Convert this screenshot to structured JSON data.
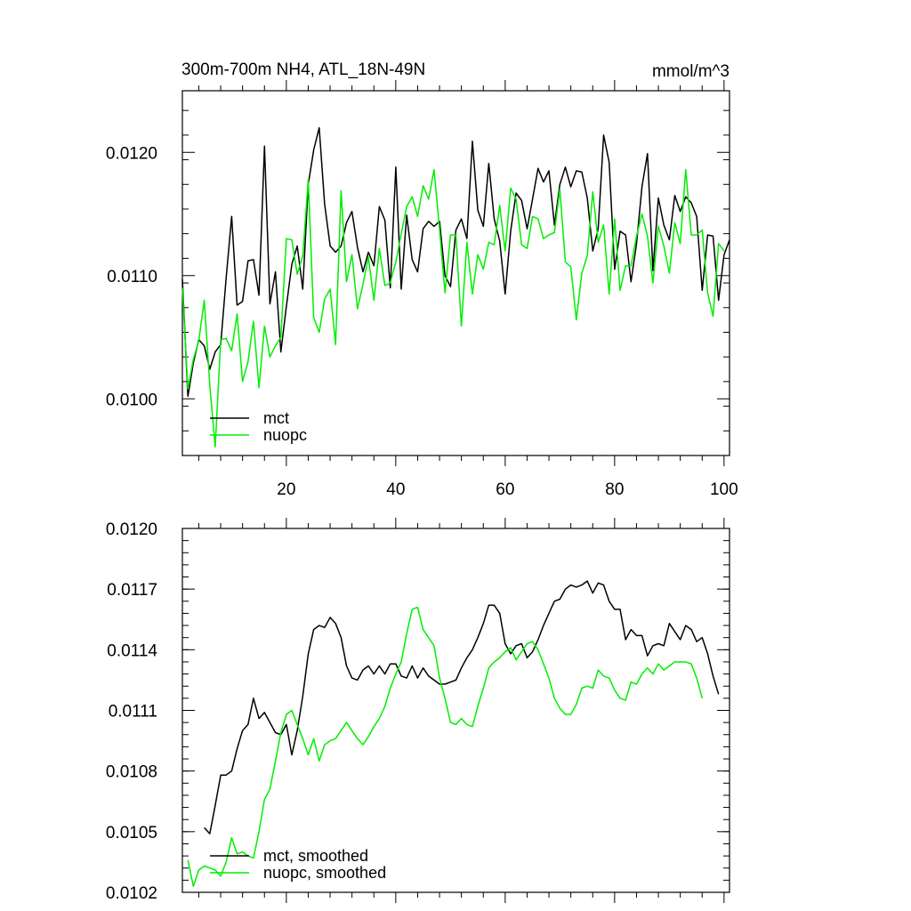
{
  "chart_data": [
    {
      "type": "line",
      "title": "300m-700m NH4, ATL_18N-49N",
      "units": "mmol/m^3",
      "xlabel": "",
      "ylabel": "",
      "xlim": [
        1,
        101
      ],
      "ylim": [
        0.00954,
        0.0125
      ],
      "x_tick_values": [
        20,
        40,
        60,
        80,
        100
      ],
      "x_tick_labels": [
        "20",
        "40",
        "60",
        "80",
        "100"
      ],
      "y_tick_values": [
        0.01,
        0.011,
        0.012
      ],
      "y_tick_labels": [
        "0.0100",
        "0.0110",
        "0.0120"
      ],
      "legend": {
        "placement": "bottom-left",
        "entries": [
          "mct",
          "nuopc"
        ]
      },
      "series": [
        {
          "name": "mct",
          "color": "#000000",
          "x_start": 1,
          "values": [
            0.01097,
            0.01002,
            0.01029,
            0.01048,
            0.01043,
            0.01024,
            0.01038,
            0.01044,
            0.01098,
            0.01148,
            0.01076,
            0.01079,
            0.01112,
            0.01113,
            0.01084,
            0.01205,
            0.01077,
            0.01103,
            0.01038,
            0.01075,
            0.01109,
            0.01124,
            0.01089,
            0.01174,
            0.01202,
            0.0122,
            0.01158,
            0.01124,
            0.01119,
            0.01124,
            0.01143,
            0.01152,
            0.01123,
            0.01103,
            0.01119,
            0.01108,
            0.01156,
            0.01145,
            0.0109,
            0.01188,
            0.01089,
            0.01149,
            0.01113,
            0.01103,
            0.01138,
            0.01144,
            0.0114,
            0.01144,
            0.011,
            0.01091,
            0.01137,
            0.01146,
            0.0113,
            0.01209,
            0.01153,
            0.0114,
            0.01191,
            0.01146,
            0.01128,
            0.01085,
            0.01136,
            0.01167,
            0.01161,
            0.01138,
            0.01162,
            0.01187,
            0.01176,
            0.01185,
            0.01141,
            0.01174,
            0.01188,
            0.01172,
            0.01185,
            0.01184,
            0.01163,
            0.0112,
            0.01138,
            0.01214,
            0.01192,
            0.01105,
            0.01136,
            0.01133,
            0.01095,
            0.01126,
            0.01172,
            0.01199,
            0.01104,
            0.01163,
            0.01141,
            0.01129,
            0.01165,
            0.01152,
            0.01164,
            0.01159,
            0.01148,
            0.01088,
            0.01133,
            0.01132,
            0.0108,
            0.01117,
            0.01129
          ]
        },
        {
          "name": "nuopc",
          "color": "#00ee00",
          "x_start": 1,
          "values": [
            0.0109,
            0.01008,
            0.01032,
            0.01047,
            0.0108,
            0.01011,
            0.00961,
            0.01048,
            0.01049,
            0.01039,
            0.01069,
            0.01014,
            0.0103,
            0.01063,
            0.01009,
            0.01059,
            0.01034,
            0.01043,
            0.0105,
            0.0113,
            0.01129,
            0.01101,
            0.01116,
            0.01178,
            0.01066,
            0.01054,
            0.01081,
            0.01089,
            0.01044,
            0.01169,
            0.01095,
            0.01117,
            0.01073,
            0.01093,
            0.01115,
            0.0108,
            0.01122,
            0.01092,
            0.01094,
            0.01111,
            0.01134,
            0.01156,
            0.01164,
            0.01148,
            0.01173,
            0.01162,
            0.01186,
            0.01137,
            0.01086,
            0.01133,
            0.01133,
            0.01059,
            0.01127,
            0.01085,
            0.01117,
            0.01105,
            0.01127,
            0.01125,
            0.01157,
            0.0112,
            0.01171,
            0.01162,
            0.01125,
            0.01122,
            0.01148,
            0.01146,
            0.0113,
            0.01133,
            0.01135,
            0.0117,
            0.01111,
            0.01107,
            0.01064,
            0.01102,
            0.01116,
            0.01168,
            0.01127,
            0.01141,
            0.01085,
            0.01146,
            0.01088,
            0.01108,
            0.01108,
            0.01132,
            0.0115,
            0.01132,
            0.01094,
            0.0114,
            0.01124,
            0.01102,
            0.01143,
            0.01126,
            0.01186,
            0.01133,
            0.01133,
            0.01137,
            0.01086,
            0.01067,
            0.01126,
            0.0112
          ]
        }
      ]
    },
    {
      "type": "line",
      "title": "",
      "xlabel": "",
      "ylabel": "",
      "xlim": [
        1,
        101
      ],
      "ylim": [
        0.0102,
        0.012
      ],
      "x_tick_values": [
        20,
        40,
        60,
        80,
        100
      ],
      "x_tick_labels": [],
      "y_tick_values": [
        0.0102,
        0.0105,
        0.0108,
        0.0111,
        0.0114,
        0.0117,
        0.012
      ],
      "y_tick_labels": [
        "0.0102",
        "0.0105",
        "0.0108",
        "0.0111",
        "0.0114",
        "0.0117",
        "0.0120"
      ],
      "legend": {
        "placement": "bottom-left",
        "entries": [
          "mct, smoothed",
          "nuopc, smoothed"
        ]
      },
      "series": [
        {
          "name": "mct, smoothed",
          "color": "#000000",
          "x_start": 5,
          "values": [
            0.01052,
            0.01049,
            0.01063,
            0.01078,
            0.01078,
            0.0108,
            0.01091,
            0.011,
            0.01103,
            0.01116,
            0.01106,
            0.01109,
            0.01104,
            0.01099,
            0.01098,
            0.01103,
            0.01088,
            0.011,
            0.01117,
            0.01138,
            0.0115,
            0.01152,
            0.01151,
            0.01156,
            0.01153,
            0.01146,
            0.01132,
            0.01126,
            0.01125,
            0.0113,
            0.01132,
            0.01128,
            0.01132,
            0.01128,
            0.01133,
            0.01133,
            0.01127,
            0.01126,
            0.01132,
            0.01126,
            0.01131,
            0.01127,
            0.01125,
            0.01123,
            0.01123,
            0.01124,
            0.01125,
            0.01131,
            0.01136,
            0.0114,
            0.01146,
            0.01153,
            0.01162,
            0.01162,
            0.01158,
            0.01143,
            0.01138,
            0.01142,
            0.01143,
            0.01136,
            0.01139,
            0.01145,
            0.01152,
            0.01158,
            0.01164,
            0.01165,
            0.0117,
            0.01172,
            0.01171,
            0.01172,
            0.01174,
            0.01168,
            0.01173,
            0.01172,
            0.01164,
            0.0116,
            0.0116,
            0.01145,
            0.0115,
            0.01147,
            0.01147,
            0.01137,
            0.01142,
            0.01143,
            0.01142,
            0.01153,
            0.01149,
            0.01145,
            0.01152,
            0.0115,
            0.01144,
            0.01146,
            0.01138,
            0.01127,
            0.01118
          ]
        },
        {
          "name": "nuopc, smoothed",
          "color": "#00ee00",
          "x_start": 2,
          "values": [
            0.01036,
            0.01023,
            0.01031,
            0.01033,
            0.01032,
            0.01031,
            0.01028,
            0.01035,
            0.01047,
            0.01039,
            0.0104,
            0.01038,
            0.01037,
            0.0105,
            0.01066,
            0.01071,
            0.01085,
            0.01099,
            0.01108,
            0.0111,
            0.01103,
            0.01096,
            0.01088,
            0.01096,
            0.01085,
            0.01093,
            0.01095,
            0.01096,
            0.011,
            0.01104,
            0.011,
            0.01096,
            0.01093,
            0.01097,
            0.01102,
            0.01106,
            0.01112,
            0.01121,
            0.01128,
            0.01134,
            0.01148,
            0.0116,
            0.01161,
            0.0115,
            0.01146,
            0.01142,
            0.01126,
            0.01116,
            0.01104,
            0.01103,
            0.01106,
            0.01103,
            0.01102,
            0.01112,
            0.01121,
            0.01131,
            0.01134,
            0.01136,
            0.01139,
            0.01141,
            0.01135,
            0.01139,
            0.01143,
            0.01144,
            0.0114,
            0.01133,
            0.01126,
            0.01116,
            0.01111,
            0.01108,
            0.01108,
            0.01113,
            0.01121,
            0.01122,
            0.01121,
            0.0113,
            0.01127,
            0.01126,
            0.0112,
            0.01116,
            0.01115,
            0.01124,
            0.01123,
            0.01128,
            0.01131,
            0.01128,
            0.01133,
            0.0113,
            0.01132,
            0.01134,
            0.01134,
            0.01134,
            0.01133,
            0.01126,
            0.01116
          ]
        }
      ]
    }
  ]
}
